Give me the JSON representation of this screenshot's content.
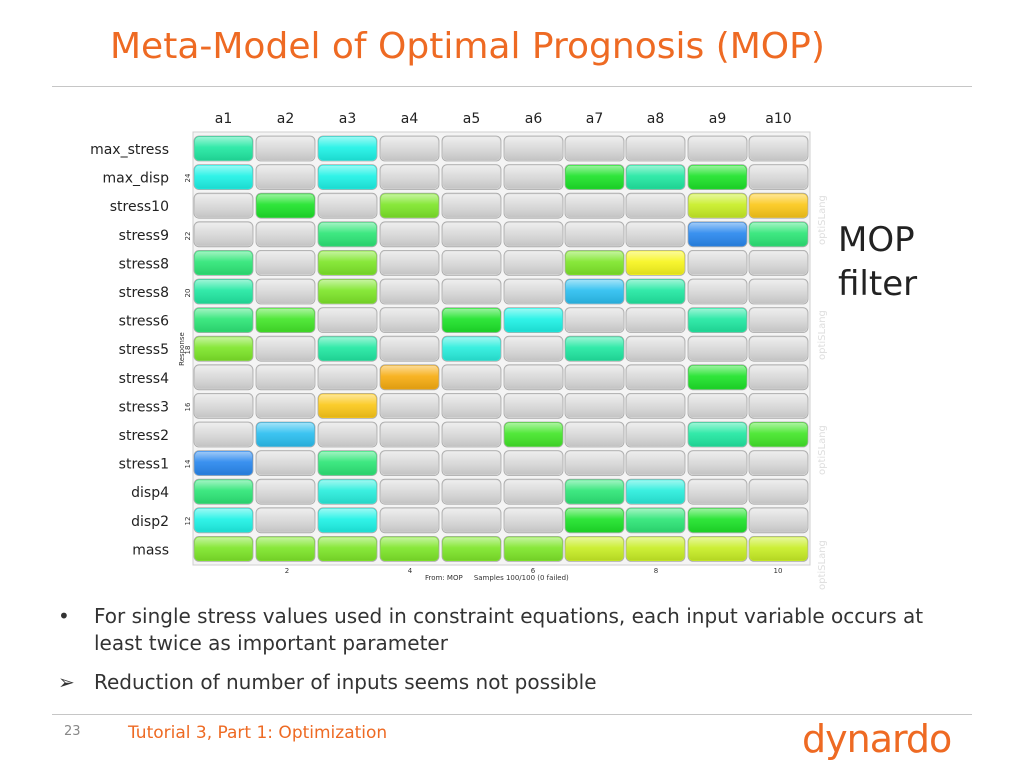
{
  "slide": {
    "title": "Meta-Model of Optimal Prognosis (MOP)",
    "side_note": [
      "MOP",
      "filter"
    ],
    "bullets": [
      {
        "marker": "•",
        "text": "For single stress values used in constraint equations, each input variable occurs at least twice as important parameter"
      },
      {
        "marker": "➢",
        "text": "Reduction of number of inputs seems not possible"
      }
    ],
    "page_number": "23",
    "footer_text": "Tutorial 3, Part 1: Optimization",
    "logo": "dynardo"
  },
  "chart_data": {
    "type": "heatmap",
    "columns": [
      "a1",
      "a2",
      "a3",
      "a4",
      "a5",
      "a6",
      "a7",
      "a8",
      "a9",
      "a10"
    ],
    "rows": [
      "max_stress",
      "max_disp",
      "stress10",
      "stress9",
      "stress8",
      "stress8",
      "stress6",
      "stress5",
      "stress4",
      "stress3",
      "stress2",
      "stress1",
      "disp4",
      "disp2",
      "mass"
    ],
    "cells": [
      [
        "teal-green",
        "gray",
        "cyan",
        "gray",
        "gray",
        "gray",
        "gray",
        "gray",
        "gray",
        "gray"
      ],
      [
        "cyan",
        "gray",
        "cyan",
        "gray",
        "gray",
        "gray",
        "green",
        "teal-green",
        "green",
        "gray"
      ],
      [
        "gray",
        "green",
        "gray",
        "lime",
        "gray",
        "gray",
        "gray",
        "gray",
        "yellow-green",
        "amber"
      ],
      [
        "gray",
        "gray",
        "emerald",
        "gray",
        "gray",
        "gray",
        "gray",
        "gray",
        "blue",
        "emerald"
      ],
      [
        "emerald",
        "gray",
        "lime",
        "gray",
        "gray",
        "gray",
        "lime",
        "yellow",
        "gray",
        "gray"
      ],
      [
        "teal-green",
        "gray",
        "lime",
        "gray",
        "gray",
        "gray",
        "sky-blue",
        "teal-green",
        "gray",
        "gray"
      ],
      [
        "emerald",
        "bright-green",
        "gray",
        "gray",
        "green",
        "cyan",
        "gray",
        "gray",
        "teal-green",
        "gray"
      ],
      [
        "lime",
        "gray",
        "teal-green",
        "gray",
        "aqua",
        "gray",
        "teal-green",
        "gray",
        "gray",
        "gray"
      ],
      [
        "gray",
        "gray",
        "gray",
        "orange",
        "gray",
        "gray",
        "gray",
        "gray",
        "green",
        "gray"
      ],
      [
        "gray",
        "gray",
        "amber",
        "gray",
        "gray",
        "gray",
        "gray",
        "gray",
        "gray",
        "gray"
      ],
      [
        "gray",
        "sky-blue",
        "gray",
        "gray",
        "gray",
        "bright-green",
        "gray",
        "gray",
        "teal-green",
        "bright-green"
      ],
      [
        "blue",
        "gray",
        "emerald",
        "gray",
        "gray",
        "gray",
        "gray",
        "gray",
        "gray",
        "gray"
      ],
      [
        "emerald",
        "gray",
        "aqua",
        "gray",
        "gray",
        "gray",
        "emerald",
        "aqua",
        "gray",
        "gray"
      ],
      [
        "cyan",
        "gray",
        "cyan",
        "gray",
        "gray",
        "gray",
        "green",
        "emerald",
        "green",
        "gray"
      ],
      [
        "lime",
        "lime",
        "lime",
        "lime",
        "lime",
        "lime",
        "yellow-green",
        "yellow-green",
        "yellow-green",
        "yellow-green"
      ]
    ],
    "palette": {
      "gray": "#d9d9d9",
      "teal-green": "#22e8a2",
      "cyan": "#1ff2e6",
      "aqua": "#2aeedd",
      "green": "#1ee32a",
      "bright-green": "#44e62a",
      "emerald": "#2ee677",
      "lime": "#7ee62a",
      "yellow-green": "#c8ee26",
      "yellow": "#f7f51e",
      "amber": "#fbc81a",
      "orange": "#f7ad12",
      "blue": "#2a88ee",
      "sky-blue": "#2cbff0"
    },
    "y_axis": {
      "label": "Response",
      "ticks": [
        "24",
        "22",
        "20",
        "18",
        "16",
        "14",
        "12"
      ]
    },
    "x_axis": {
      "ticks": [
        "2",
        "4",
        "6",
        "8",
        "10"
      ]
    },
    "footer": "From: MOP     Samples 100/100 (0 failed)",
    "watermark": "optiSLang"
  },
  "colors": {
    "accent": "#ee6a23",
    "text": "#333333",
    "rule": "#c6c6c6"
  }
}
